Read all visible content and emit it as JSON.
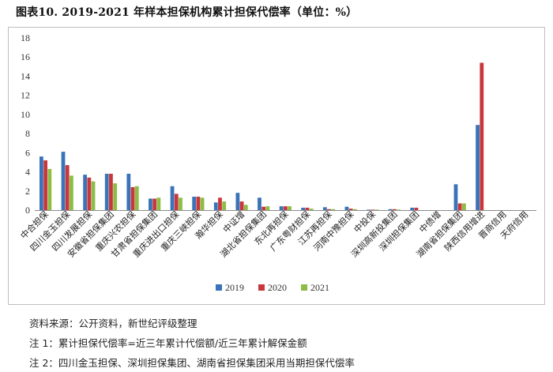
{
  "title": "图表10. 2019-2021 年样本担保机构累计担保代偿率（单位：%）",
  "chart_data": {
    "type": "bar",
    "categories": [
      "中合担保",
      "四川金玉担保",
      "四川发展担保",
      "安徽省担保集团",
      "重庆兴农担保",
      "甘肃省担保集团",
      "重庆进出口担保",
      "重庆三峡担保",
      "瀚华担保",
      "中证增",
      "湖北省担保集团",
      "东北再担保",
      "广东粤财担保",
      "江苏再担保",
      "河南中豫担保",
      "中投保",
      "深圳高新投集团",
      "深圳担保集团",
      "中债增",
      "湖南省担保集团",
      "陕西信用增进",
      "晋商信用",
      "天府信用"
    ],
    "series": [
      {
        "name": "2019",
        "color": "#3a73b8",
        "values": [
          5.6,
          6.1,
          3.7,
          3.8,
          3.8,
          1.2,
          2.5,
          1.4,
          0.8,
          1.8,
          1.3,
          0.4,
          0.25,
          0.3,
          0.35,
          0.05,
          0.1,
          0.25,
          0.0,
          2.7,
          8.9,
          0.0,
          0.0
        ]
      },
      {
        "name": "2020",
        "color": "#c9363b",
        "values": [
          5.2,
          4.7,
          3.4,
          3.8,
          2.4,
          1.2,
          1.7,
          1.4,
          1.3,
          0.9,
          0.35,
          0.4,
          0.25,
          0.1,
          0.15,
          0.05,
          0.1,
          0.25,
          0.0,
          0.7,
          15.4,
          0.0,
          0.0
        ]
      },
      {
        "name": "2021",
        "color": "#8dbd45",
        "values": [
          4.3,
          3.6,
          3.0,
          2.8,
          2.5,
          1.3,
          1.3,
          1.3,
          0.9,
          0.55,
          0.4,
          0.4,
          0.15,
          0.1,
          0.1,
          0.05,
          0.05,
          0.0,
          0.0,
          0.7,
          0.0,
          0.0,
          0.0
        ]
      }
    ],
    "ylim": [
      0,
      18
    ],
    "yticks": [
      0,
      2,
      4,
      6,
      8,
      10,
      12,
      14,
      16,
      18
    ],
    "grid": false,
    "legend": "bottom"
  },
  "notes": {
    "source": "资料来源：公开资料，新世纪评级整理",
    "note1": "注 1：累计担保代偿率=近三年累计代偿额/近三年累计解保金额",
    "note2": "注 2：四川金玉担保、深圳担保集团、湖南省担保集团采用当期担保代偿率"
  }
}
